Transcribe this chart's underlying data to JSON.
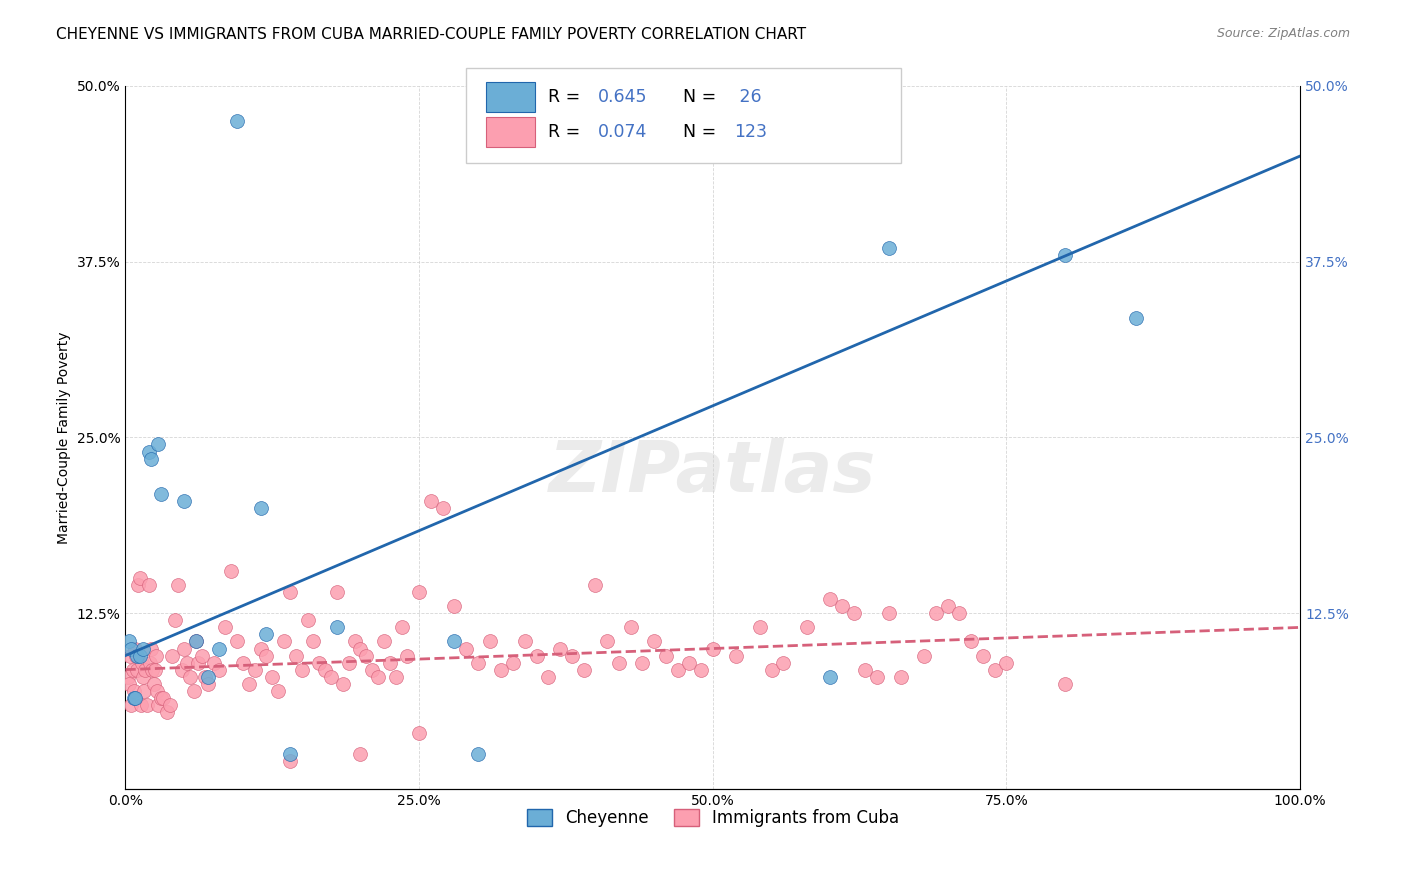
{
  "title": "CHEYENNE VS IMMIGRANTS FROM CUBA MARRIED-COUPLE FAMILY POVERTY CORRELATION CHART",
  "source": "Source: ZipAtlas.com",
  "xlabel": "",
  "ylabel": "Married-Couple Family Poverty",
  "xlim": [
    0,
    100
  ],
  "ylim": [
    0,
    50
  ],
  "xticks": [
    0,
    25,
    50,
    75,
    100
  ],
  "xticklabels": [
    "0.0%",
    "25.0%",
    "50.0%",
    "75.0%",
    "100.0%"
  ],
  "yticks": [
    0,
    12.5,
    25,
    37.5,
    50
  ],
  "yticklabels": [
    "",
    "12.5%",
    "25.0%",
    "37.5%",
    "50.0%"
  ],
  "watermark": "ZIPatlas",
  "legend_R_blue": "0.645",
  "legend_N_blue": " 26",
  "legend_R_pink": "0.074",
  "legend_N_pink": "123",
  "legend_label_blue": "Cheyenne",
  "legend_label_pink": "Immigrants from Cuba",
  "blue_color": "#6baed6",
  "pink_color": "#fc9fb0",
  "line_blue_color": "#2166ac",
  "line_pink_color": "#d6607a",
  "value_color": "#4472c4",
  "blue_scatter": [
    [
      0.3,
      10.5
    ],
    [
      0.5,
      10.0
    ],
    [
      0.7,
      6.5
    ],
    [
      0.8,
      6.5
    ],
    [
      1.0,
      9.5
    ],
    [
      1.2,
      9.5
    ],
    [
      1.5,
      10.0
    ],
    [
      2.0,
      24.0
    ],
    [
      2.2,
      23.5
    ],
    [
      2.8,
      24.5
    ],
    [
      3.0,
      21.0
    ],
    [
      5.0,
      20.5
    ],
    [
      6.0,
      10.5
    ],
    [
      7.0,
      8.0
    ],
    [
      8.0,
      10.0
    ],
    [
      9.5,
      47.5
    ],
    [
      11.5,
      20.0
    ],
    [
      12.0,
      11.0
    ],
    [
      14.0,
      2.5
    ],
    [
      18.0,
      11.5
    ],
    [
      28.0,
      10.5
    ],
    [
      30.0,
      2.5
    ],
    [
      60.0,
      8.0
    ],
    [
      65.0,
      38.5
    ],
    [
      80.0,
      38.0
    ],
    [
      86.0,
      33.5
    ]
  ],
  "pink_scatter": [
    [
      0.2,
      8.0
    ],
    [
      0.3,
      7.5
    ],
    [
      0.4,
      9.5
    ],
    [
      0.5,
      6.0
    ],
    [
      0.6,
      8.5
    ],
    [
      0.7,
      7.0
    ],
    [
      0.8,
      10.0
    ],
    [
      0.9,
      9.5
    ],
    [
      1.0,
      8.5
    ],
    [
      1.1,
      14.5
    ],
    [
      1.2,
      15.0
    ],
    [
      1.3,
      6.0
    ],
    [
      1.4,
      9.0
    ],
    [
      1.5,
      8.0
    ],
    [
      1.6,
      7.0
    ],
    [
      1.7,
      8.5
    ],
    [
      1.8,
      6.0
    ],
    [
      2.0,
      14.5
    ],
    [
      2.1,
      9.0
    ],
    [
      2.2,
      10.0
    ],
    [
      2.3,
      8.5
    ],
    [
      2.4,
      7.5
    ],
    [
      2.5,
      8.5
    ],
    [
      2.6,
      9.5
    ],
    [
      2.7,
      7.0
    ],
    [
      2.8,
      6.0
    ],
    [
      3.0,
      6.5
    ],
    [
      3.2,
      6.5
    ],
    [
      3.5,
      5.5
    ],
    [
      3.8,
      6.0
    ],
    [
      4.0,
      9.5
    ],
    [
      4.2,
      12.0
    ],
    [
      4.5,
      14.5
    ],
    [
      4.8,
      8.5
    ],
    [
      5.0,
      10.0
    ],
    [
      5.2,
      9.0
    ],
    [
      5.5,
      8.0
    ],
    [
      5.8,
      7.0
    ],
    [
      6.0,
      10.5
    ],
    [
      6.2,
      9.0
    ],
    [
      6.5,
      9.5
    ],
    [
      6.8,
      8.0
    ],
    [
      7.0,
      7.5
    ],
    [
      7.5,
      9.0
    ],
    [
      8.0,
      8.5
    ],
    [
      8.5,
      11.5
    ],
    [
      9.0,
      15.5
    ],
    [
      9.5,
      10.5
    ],
    [
      10.0,
      9.0
    ],
    [
      10.5,
      7.5
    ],
    [
      11.0,
      8.5
    ],
    [
      11.5,
      10.0
    ],
    [
      12.0,
      9.5
    ],
    [
      12.5,
      8.0
    ],
    [
      13.0,
      7.0
    ],
    [
      13.5,
      10.5
    ],
    [
      14.0,
      14.0
    ],
    [
      14.5,
      9.5
    ],
    [
      15.0,
      8.5
    ],
    [
      15.5,
      12.0
    ],
    [
      16.0,
      10.5
    ],
    [
      16.5,
      9.0
    ],
    [
      17.0,
      8.5
    ],
    [
      17.5,
      8.0
    ],
    [
      18.0,
      14.0
    ],
    [
      18.5,
      7.5
    ],
    [
      19.0,
      9.0
    ],
    [
      19.5,
      10.5
    ],
    [
      20.0,
      10.0
    ],
    [
      20.5,
      9.5
    ],
    [
      21.0,
      8.5
    ],
    [
      21.5,
      8.0
    ],
    [
      22.0,
      10.5
    ],
    [
      22.5,
      9.0
    ],
    [
      23.0,
      8.0
    ],
    [
      23.5,
      11.5
    ],
    [
      24.0,
      9.5
    ],
    [
      25.0,
      14.0
    ],
    [
      26.0,
      20.5
    ],
    [
      27.0,
      20.0
    ],
    [
      28.0,
      13.0
    ],
    [
      29.0,
      10.0
    ],
    [
      30.0,
      9.0
    ],
    [
      31.0,
      10.5
    ],
    [
      32.0,
      8.5
    ],
    [
      33.0,
      9.0
    ],
    [
      34.0,
      10.5
    ],
    [
      35.0,
      9.5
    ],
    [
      36.0,
      8.0
    ],
    [
      37.0,
      10.0
    ],
    [
      38.0,
      9.5
    ],
    [
      39.0,
      8.5
    ],
    [
      40.0,
      14.5
    ],
    [
      41.0,
      10.5
    ],
    [
      42.0,
      9.0
    ],
    [
      43.0,
      11.5
    ],
    [
      44.0,
      9.0
    ],
    [
      45.0,
      10.5
    ],
    [
      46.0,
      9.5
    ],
    [
      47.0,
      8.5
    ],
    [
      48.0,
      9.0
    ],
    [
      49.0,
      8.5
    ],
    [
      50.0,
      10.0
    ],
    [
      52.0,
      9.5
    ],
    [
      54.0,
      11.5
    ],
    [
      55.0,
      8.5
    ],
    [
      56.0,
      9.0
    ],
    [
      58.0,
      11.5
    ],
    [
      60.0,
      13.5
    ],
    [
      61.0,
      13.0
    ],
    [
      62.0,
      12.5
    ],
    [
      63.0,
      8.5
    ],
    [
      64.0,
      8.0
    ],
    [
      65.0,
      12.5
    ],
    [
      66.0,
      8.0
    ],
    [
      68.0,
      9.5
    ],
    [
      69.0,
      12.5
    ],
    [
      70.0,
      13.0
    ],
    [
      71.0,
      12.5
    ],
    [
      72.0,
      10.5
    ],
    [
      73.0,
      9.5
    ],
    [
      74.0,
      8.5
    ],
    [
      75.0,
      9.0
    ],
    [
      80.0,
      7.5
    ],
    [
      14.0,
      2.0
    ],
    [
      20.0,
      2.5
    ],
    [
      25.0,
      4.0
    ]
  ],
  "blue_line": [
    [
      0,
      9.5
    ],
    [
      100,
      45.0
    ]
  ],
  "pink_line": [
    [
      0,
      8.5
    ],
    [
      100,
      11.5
    ]
  ],
  "background_color": "#ffffff",
  "grid_color": "#cccccc",
  "title_fontsize": 11,
  "axis_label_fontsize": 10,
  "tick_fontsize": 10
}
